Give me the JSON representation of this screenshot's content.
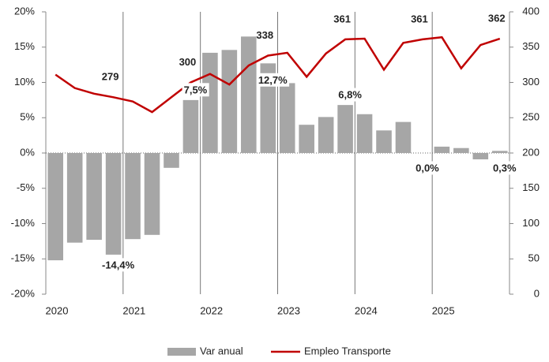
{
  "chart_data": {
    "type": "bar-line",
    "categories": [
      null,
      null,
      null,
      null,
      null,
      null,
      null,
      null,
      null,
      null,
      null,
      null,
      null,
      null,
      null,
      null,
      null,
      null,
      null,
      null,
      null,
      null,
      null,
      null
    ],
    "year_labels": [
      "2020",
      "2021",
      "2022",
      "2023",
      "2024",
      "2025"
    ],
    "series": [
      {
        "name": "Var anual",
        "color": "#a6a6a6",
        "type": "bar",
        "values": [
          -15.2,
          -12.7,
          -12.3,
          -14.4,
          -12.2,
          -11.6,
          -2.1,
          7.5,
          14.2,
          14.6,
          16.5,
          12.7,
          9.9,
          4.0,
          5.1,
          6.8,
          5.5,
          3.2,
          4.4,
          0.0,
          0.9,
          0.7,
          -0.9,
          0.3
        ],
        "value_labels": [
          null,
          null,
          null,
          "-14,4%",
          null,
          null,
          null,
          "7,5%",
          null,
          null,
          null,
          "12,7%",
          null,
          null,
          null,
          "6,8%",
          null,
          null,
          null,
          "0,0%",
          null,
          null,
          null,
          "0,3%"
        ]
      },
      {
        "name": "Empleo Transporte",
        "color": "#c00000",
        "type": "line",
        "axis": "y2",
        "values": [
          311,
          292,
          284,
          279,
          273,
          258,
          279,
          300,
          312,
          297,
          324,
          338,
          342,
          308,
          341,
          361,
          362,
          318,
          356,
          361,
          364,
          320,
          353,
          362
        ],
        "value_labels": [
          null,
          null,
          null,
          "279",
          null,
          null,
          null,
          "300",
          null,
          null,
          null,
          "338",
          null,
          null,
          null,
          "361",
          null,
          null,
          null,
          "361",
          null,
          null,
          null,
          "362"
        ]
      }
    ],
    "ylim": [
      -20,
      20
    ],
    "yticks": [
      {
        "value": -20,
        "label": "-20%"
      },
      {
        "value": -15,
        "label": "-15%"
      },
      {
        "value": -10,
        "label": "-10%"
      },
      {
        "value": -5,
        "label": "-5%"
      },
      {
        "value": 0,
        "label": "0%"
      },
      {
        "value": 5,
        "label": "5%"
      },
      {
        "value": 10,
        "label": "10%"
      },
      {
        "value": 15,
        "label": "15%"
      },
      {
        "value": 20,
        "label": "20%"
      }
    ],
    "y2lim": [
      0,
      400
    ],
    "y2ticks": [
      0,
      50,
      100,
      150,
      200,
      250,
      300,
      350,
      400
    ],
    "legend": "bottom"
  }
}
